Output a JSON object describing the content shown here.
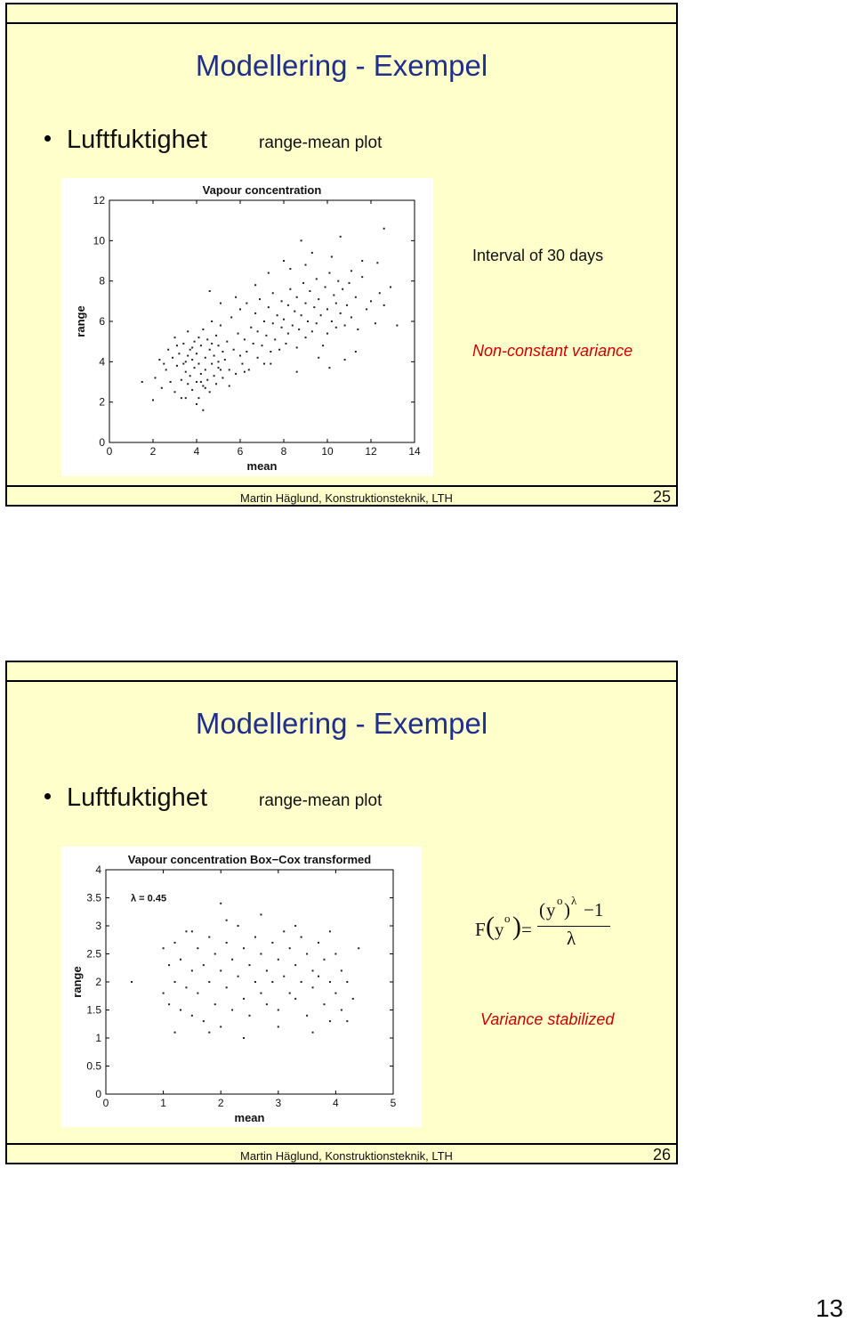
{
  "slides": [
    {
      "title": "Modellering - Exempel",
      "bullet": "Luftfuktighet",
      "subtitle": "range-mean plot",
      "note1": "Interval of 30 days",
      "note2": "Non-constant variance",
      "footer": "Martin Häglund, Konstruktionsteknik, LTH",
      "number": "25"
    },
    {
      "title": "Modellering - Exempel",
      "bullet": "Luftfuktighet",
      "subtitle": "range-mean plot",
      "formula": {
        "lhs_f": "F",
        "lhs_arg": "y",
        "lhs_sup": "o",
        "num_base": "y",
        "num_sup": "o",
        "num_exp": "λ",
        "num_minus_one": "−1",
        "den": "λ"
      },
      "note2": "Variance stabilized",
      "footer": "Martin Häglund, Konstruktionsteknik, LTH",
      "number": "26"
    }
  ],
  "page_number": "13",
  "chart_data": [
    {
      "type": "scatter",
      "title": "Vapour concentration",
      "xlabel": "mean",
      "ylabel": "range",
      "xlim": [
        0,
        14
      ],
      "ylim": [
        0,
        12
      ],
      "xticks": [
        0,
        2,
        4,
        6,
        8,
        10,
        12,
        14
      ],
      "yticks": [
        0,
        2,
        4,
        6,
        8,
        10,
        12
      ],
      "points": [
        [
          2.1,
          3.2
        ],
        [
          2.3,
          4.1
        ],
        [
          2.4,
          2.7
        ],
        [
          2.6,
          3.6
        ],
        [
          2.7,
          4.6
        ],
        [
          2.8,
          3.0
        ],
        [
          2.9,
          4.2
        ],
        [
          3.0,
          2.5
        ],
        [
          3.0,
          5.2
        ],
        [
          3.1,
          3.8
        ],
        [
          3.2,
          4.4
        ],
        [
          3.3,
          3.1
        ],
        [
          3.3,
          2.2
        ],
        [
          3.4,
          4.9
        ],
        [
          3.5,
          3.5
        ],
        [
          3.5,
          4.0
        ],
        [
          3.6,
          2.9
        ],
        [
          3.6,
          5.5
        ],
        [
          3.7,
          3.3
        ],
        [
          3.7,
          4.6
        ],
        [
          3.8,
          2.6
        ],
        [
          3.8,
          4.1
        ],
        [
          3.9,
          3.7
        ],
        [
          3.9,
          5.0
        ],
        [
          4.0,
          3.0
        ],
        [
          4.0,
          4.4
        ],
        [
          4.1,
          2.2
        ],
        [
          4.1,
          3.9
        ],
        [
          4.2,
          4.8
        ],
        [
          4.2,
          3.4
        ],
        [
          4.3,
          5.6
        ],
        [
          4.3,
          2.8
        ],
        [
          4.4,
          4.2
        ],
        [
          4.4,
          3.6
        ],
        [
          4.5,
          5.1
        ],
        [
          4.5,
          3.1
        ],
        [
          4.6,
          4.6
        ],
        [
          4.6,
          2.5
        ],
        [
          4.7,
          3.9
        ],
        [
          4.7,
          6.0
        ],
        [
          4.8,
          4.3
        ],
        [
          4.8,
          3.3
        ],
        [
          4.9,
          5.3
        ],
        [
          4.9,
          2.9
        ],
        [
          5.0,
          4.0
        ],
        [
          5.0,
          4.8
        ],
        [
          5.1,
          3.6
        ],
        [
          5.1,
          5.8
        ],
        [
          5.2,
          4.5
        ],
        [
          5.2,
          3.2
        ],
        [
          3.1,
          4.8
        ],
        [
          3.4,
          3.9
        ],
        [
          3.8,
          4.7
        ],
        [
          4.1,
          5.2
        ],
        [
          4.4,
          2.7
        ],
        [
          4.7,
          4.9
        ],
        [
          5.0,
          3.7
        ],
        [
          2.5,
          3.9
        ],
        [
          3.6,
          4.3
        ],
        [
          4.2,
          3.0
        ],
        [
          5.3,
          4.1
        ],
        [
          5.4,
          5.0
        ],
        [
          5.5,
          3.6
        ],
        [
          5.6,
          6.2
        ],
        [
          5.7,
          4.6
        ],
        [
          5.8,
          3.4
        ],
        [
          5.9,
          5.4
        ],
        [
          6.0,
          4.3
        ],
        [
          6.0,
          6.6
        ],
        [
          6.1,
          3.9
        ],
        [
          6.2,
          5.1
        ],
        [
          6.3,
          4.5
        ],
        [
          6.3,
          6.9
        ],
        [
          6.4,
          3.6
        ],
        [
          6.5,
          5.7
        ],
        [
          6.6,
          4.9
        ],
        [
          6.7,
          6.4
        ],
        [
          6.8,
          4.2
        ],
        [
          6.8,
          5.5
        ],
        [
          6.9,
          7.1
        ],
        [
          7.0,
          4.8
        ],
        [
          7.1,
          6.0
        ],
        [
          7.1,
          3.9
        ],
        [
          7.2,
          5.3
        ],
        [
          7.3,
          6.7
        ],
        [
          7.4,
          4.5
        ],
        [
          7.5,
          5.9
        ],
        [
          7.5,
          7.4
        ],
        [
          7.6,
          5.1
        ],
        [
          7.7,
          6.3
        ],
        [
          7.8,
          4.6
        ],
        [
          7.9,
          5.7
        ],
        [
          7.9,
          7.0
        ],
        [
          8.0,
          6.1
        ],
        [
          8.1,
          4.9
        ],
        [
          8.2,
          6.8
        ],
        [
          8.2,
          5.4
        ],
        [
          8.3,
          7.6
        ],
        [
          8.4,
          5.8
        ],
        [
          8.5,
          6.5
        ],
        [
          8.6,
          4.7
        ],
        [
          8.6,
          7.2
        ],
        [
          8.7,
          5.6
        ],
        [
          8.8,
          6.3
        ],
        [
          8.9,
          7.9
        ],
        [
          9.0,
          5.2
        ],
        [
          9.0,
          6.9
        ],
        [
          9.1,
          6.0
        ],
        [
          9.2,
          7.5
        ],
        [
          9.3,
          5.5
        ],
        [
          9.4,
          6.7
        ],
        [
          9.5,
          8.1
        ],
        [
          9.5,
          5.9
        ],
        [
          9.6,
          7.1
        ],
        [
          9.7,
          6.3
        ],
        [
          9.8,
          4.8
        ],
        [
          9.9,
          7.7
        ],
        [
          10.0,
          6.6
        ],
        [
          10.0,
          5.4
        ],
        [
          10.1,
          8.4
        ],
        [
          10.2,
          6.0
        ],
        [
          10.3,
          7.3
        ],
        [
          10.4,
          5.7
        ],
        [
          10.4,
          6.9
        ],
        [
          10.5,
          8.0
        ],
        [
          10.6,
          6.4
        ],
        [
          10.7,
          7.6
        ],
        [
          10.8,
          5.8
        ],
        [
          10.9,
          6.8
        ],
        [
          11.0,
          7.9
        ],
        [
          11.1,
          6.2
        ],
        [
          11.3,
          7.2
        ],
        [
          11.4,
          5.6
        ],
        [
          11.6,
          8.2
        ],
        [
          11.8,
          6.6
        ],
        [
          12.0,
          7.0
        ],
        [
          12.2,
          5.9
        ],
        [
          12.4,
          7.4
        ],
        [
          12.6,
          6.8
        ],
        [
          12.9,
          7.7
        ],
        [
          8.0,
          9.0
        ],
        [
          8.3,
          8.6
        ],
        [
          9.0,
          8.8
        ],
        [
          9.3,
          9.4
        ],
        [
          10.2,
          9.2
        ],
        [
          10.6,
          10.2
        ],
        [
          11.1,
          8.5
        ],
        [
          11.6,
          9.0
        ],
        [
          12.3,
          8.9
        ],
        [
          12.6,
          10.6
        ],
        [
          7.3,
          8.4
        ],
        [
          8.8,
          10.0
        ],
        [
          6.7,
          7.8
        ],
        [
          5.8,
          7.2
        ],
        [
          5.1,
          6.9
        ],
        [
          4.6,
          7.5
        ],
        [
          13.2,
          5.8
        ],
        [
          9.6,
          4.2
        ],
        [
          10.1,
          3.7
        ],
        [
          10.8,
          4.1
        ],
        [
          11.3,
          4.5
        ],
        [
          2.0,
          2.1
        ],
        [
          1.5,
          3.0
        ],
        [
          4.0,
          1.9
        ],
        [
          4.3,
          1.6
        ],
        [
          3.5,
          2.2
        ],
        [
          6.2,
          3.5
        ],
        [
          7.4,
          3.9
        ],
        [
          8.6,
          3.5
        ],
        [
          5.5,
          2.8
        ]
      ]
    },
    {
      "type": "scatter",
      "title": "Vapour concentration Box−Cox transformed",
      "xlabel": "mean",
      "ylabel": "range",
      "annotation": "λ = 0.45",
      "xlim": [
        0,
        5
      ],
      "ylim": [
        0,
        4
      ],
      "xticks": [
        0,
        1,
        2,
        3,
        4,
        5
      ],
      "yticks": [
        "0",
        "0.5",
        "1",
        "1.5",
        "2",
        "2.5",
        "3",
        "3.5",
        "4"
      ],
      "points": [
        [
          1.0,
          1.8
        ],
        [
          1.1,
          2.3
        ],
        [
          1.1,
          1.6
        ],
        [
          1.2,
          2.7
        ],
        [
          1.2,
          2.0
        ],
        [
          1.3,
          1.5
        ],
        [
          1.3,
          2.4
        ],
        [
          1.4,
          1.9
        ],
        [
          1.4,
          2.9
        ],
        [
          1.5,
          2.2
        ],
        [
          1.5,
          1.4
        ],
        [
          1.6,
          2.6
        ],
        [
          1.6,
          1.8
        ],
        [
          1.7,
          2.3
        ],
        [
          1.7,
          1.3
        ],
        [
          1.8,
          2.8
        ],
        [
          1.8,
          2.0
        ],
        [
          1.9,
          1.6
        ],
        [
          1.9,
          2.5
        ],
        [
          2.0,
          2.2
        ],
        [
          2.0,
          1.2
        ],
        [
          2.1,
          2.7
        ],
        [
          2.1,
          1.9
        ],
        [
          2.2,
          2.4
        ],
        [
          2.2,
          1.5
        ],
        [
          2.3,
          3.0
        ],
        [
          2.3,
          2.1
        ],
        [
          2.4,
          1.7
        ],
        [
          2.4,
          2.6
        ],
        [
          2.5,
          2.3
        ],
        [
          2.5,
          1.4
        ],
        [
          2.6,
          2.8
        ],
        [
          2.6,
          2.0
        ],
        [
          2.7,
          1.8
        ],
        [
          2.7,
          2.5
        ],
        [
          2.8,
          2.2
        ],
        [
          2.8,
          1.6
        ],
        [
          2.9,
          2.7
        ],
        [
          2.9,
          2.0
        ],
        [
          3.0,
          2.4
        ],
        [
          3.0,
          1.5
        ],
        [
          3.1,
          2.9
        ],
        [
          3.1,
          2.1
        ],
        [
          3.2,
          1.8
        ],
        [
          3.2,
          2.6
        ],
        [
          3.3,
          2.3
        ],
        [
          3.3,
          1.7
        ],
        [
          3.4,
          2.8
        ],
        [
          3.4,
          2.0
        ],
        [
          3.5,
          2.5
        ],
        [
          3.5,
          1.4
        ],
        [
          3.6,
          2.2
        ],
        [
          3.6,
          1.9
        ],
        [
          3.7,
          2.7
        ],
        [
          3.7,
          2.1
        ],
        [
          3.8,
          1.6
        ],
        [
          3.8,
          2.4
        ],
        [
          3.9,
          2.0
        ],
        [
          3.9,
          1.3
        ],
        [
          4.0,
          2.5
        ],
        [
          4.0,
          1.8
        ],
        [
          4.1,
          2.2
        ],
        [
          4.1,
          1.5
        ],
        [
          4.2,
          2.0
        ],
        [
          4.3,
          1.7
        ],
        [
          1.0,
          2.6
        ],
        [
          1.2,
          1.1
        ],
        [
          1.5,
          2.9
        ],
        [
          1.8,
          1.1
        ],
        [
          2.1,
          3.1
        ],
        [
          2.4,
          1.0
        ],
        [
          2.7,
          3.2
        ],
        [
          3.0,
          1.2
        ],
        [
          3.3,
          3.0
        ],
        [
          3.6,
          1.1
        ],
        [
          3.9,
          2.9
        ],
        [
          4.2,
          1.3
        ],
        [
          0.45,
          2.0
        ],
        [
          2.0,
          3.4
        ],
        [
          4.4,
          2.6
        ]
      ]
    }
  ]
}
